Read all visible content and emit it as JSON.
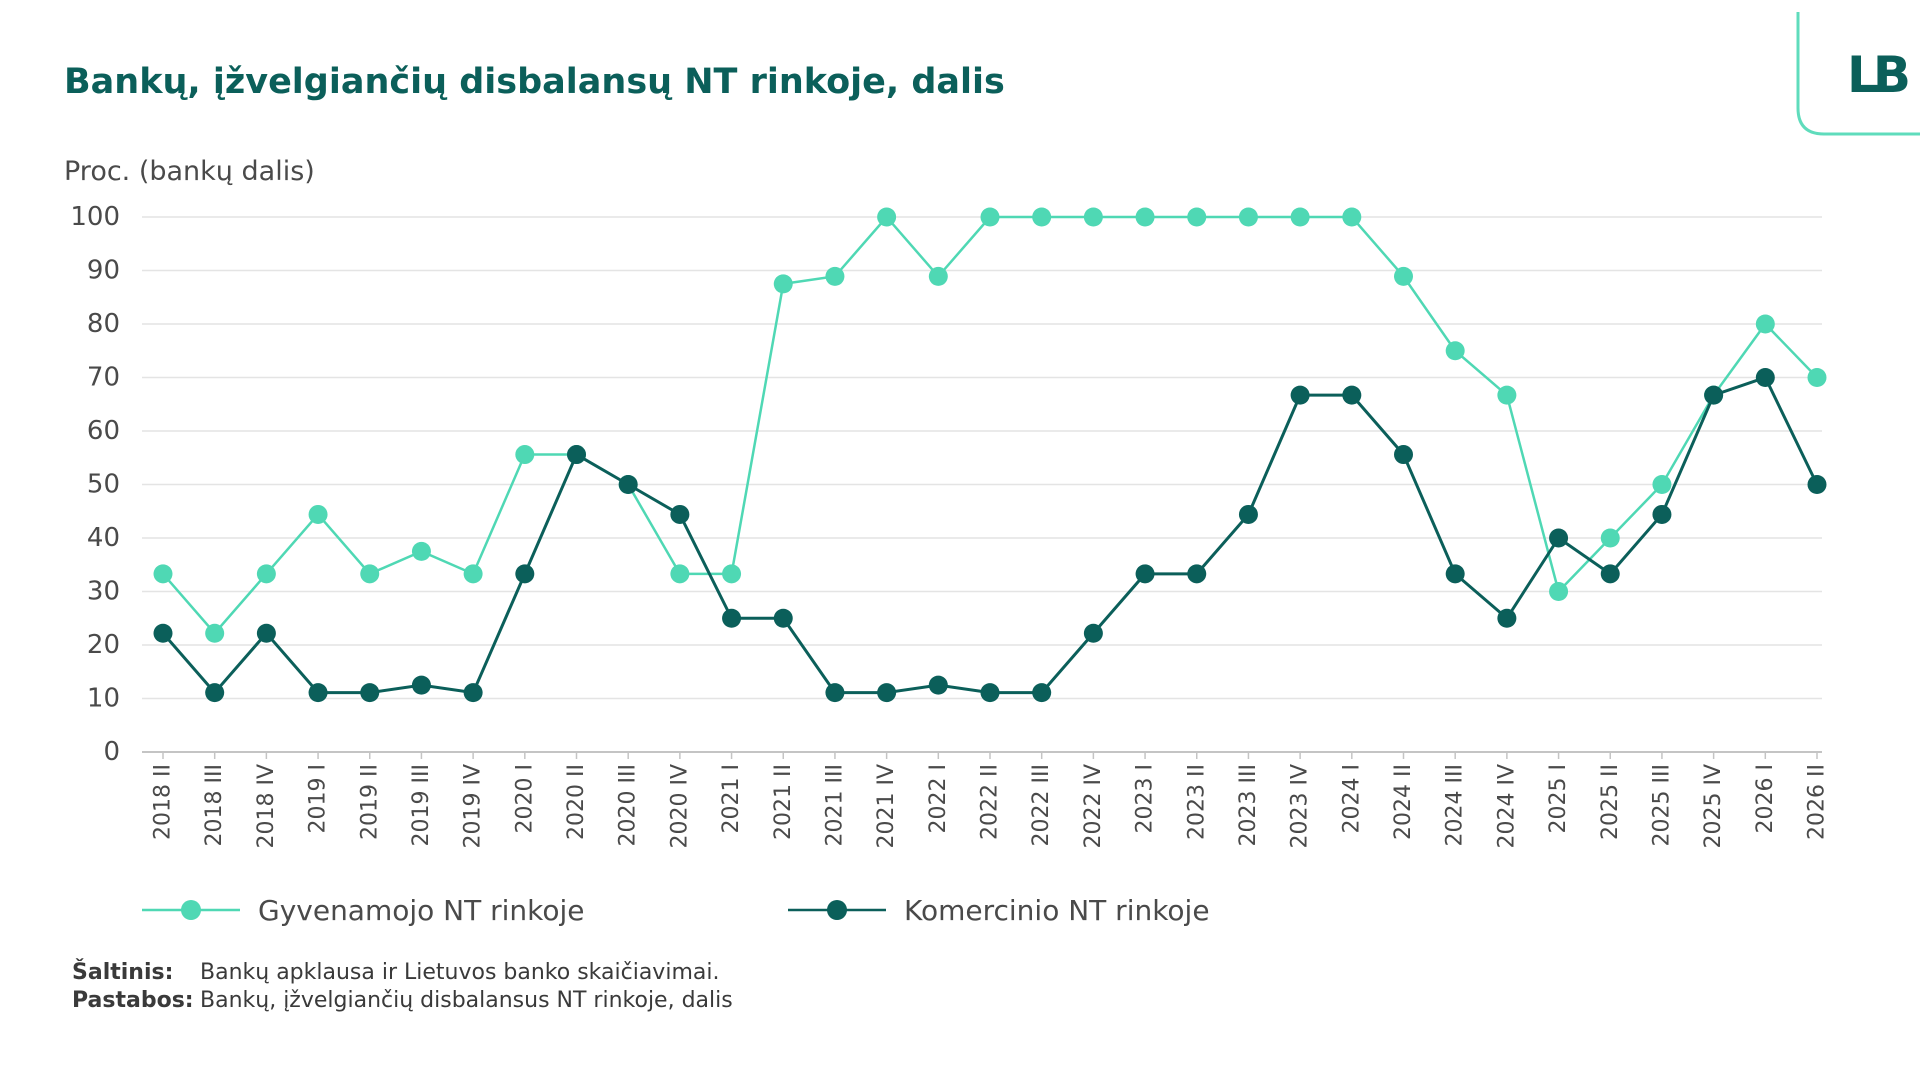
{
  "title": "Bankų, įžvelgiančių disbalansų NT rinkoje, dalis",
  "logo": "LB",
  "colors": {
    "title": "#0b5f5a",
    "logo_frame": "#5fdcbc"
  },
  "chart_data": {
    "type": "line",
    "ylabel": "Proc. (bankų dalis)",
    "ylim": [
      0,
      100
    ],
    "yticks": [
      0,
      10,
      20,
      30,
      40,
      50,
      60,
      70,
      80,
      90,
      100
    ],
    "grid": true,
    "legend_position": "bottom",
    "categories": [
      "2018 II",
      "2018 III",
      "2018 IV",
      "2019 I",
      "2019 II",
      "2019 III",
      "2019 IV",
      "2020 I",
      "2020 II",
      "2020 III",
      "2020 IV",
      "2021 I",
      "2021 II",
      "2021 III",
      "2021 IV",
      "2022 I",
      "2022 II",
      "2022 III",
      "2022 IV",
      "2023 I",
      "2023 II",
      "2023 III",
      "2023 IV",
      "2024 I",
      "2024 II",
      "2024 III",
      "2024 IV",
      "2025 I",
      "2025 II",
      "2025 III",
      "2025 IV",
      "2026 I",
      "2026 II"
    ],
    "series": [
      {
        "name": "Gyvenamojo NT rinkoje",
        "color": "#4fd8b4",
        "values": [
          33.3,
          22.2,
          33.3,
          44.4,
          33.3,
          37.5,
          33.3,
          55.6,
          55.6,
          50.0,
          33.3,
          33.3,
          87.5,
          88.9,
          100,
          88.9,
          100,
          100,
          100,
          100,
          100,
          100,
          100,
          100,
          88.9,
          75.0,
          66.7,
          30.0,
          40.0,
          50.0,
          66.7,
          80.0,
          70.0
        ]
      },
      {
        "name": "Komercinio NT rinkoje",
        "color": "#0b5f5a",
        "values": [
          22.2,
          11.1,
          22.2,
          11.1,
          11.1,
          12.5,
          11.1,
          33.3,
          55.6,
          50.0,
          44.4,
          25.0,
          25.0,
          11.1,
          11.1,
          12.5,
          11.1,
          11.1,
          22.2,
          33.3,
          33.3,
          44.4,
          66.7,
          66.7,
          55.6,
          33.3,
          25.0,
          40.0,
          33.3,
          44.4,
          66.7,
          70.0,
          50.0
        ]
      }
    ]
  },
  "footer": {
    "source_label": "Šaltinis:",
    "source_text": "Bankų apklausa ir Lietuvos banko skaičiavimai.",
    "notes_label": "Pastabos:",
    "notes_text": "Bankų, įžvelgiančių disbalansus NT rinkoje, dalis"
  }
}
